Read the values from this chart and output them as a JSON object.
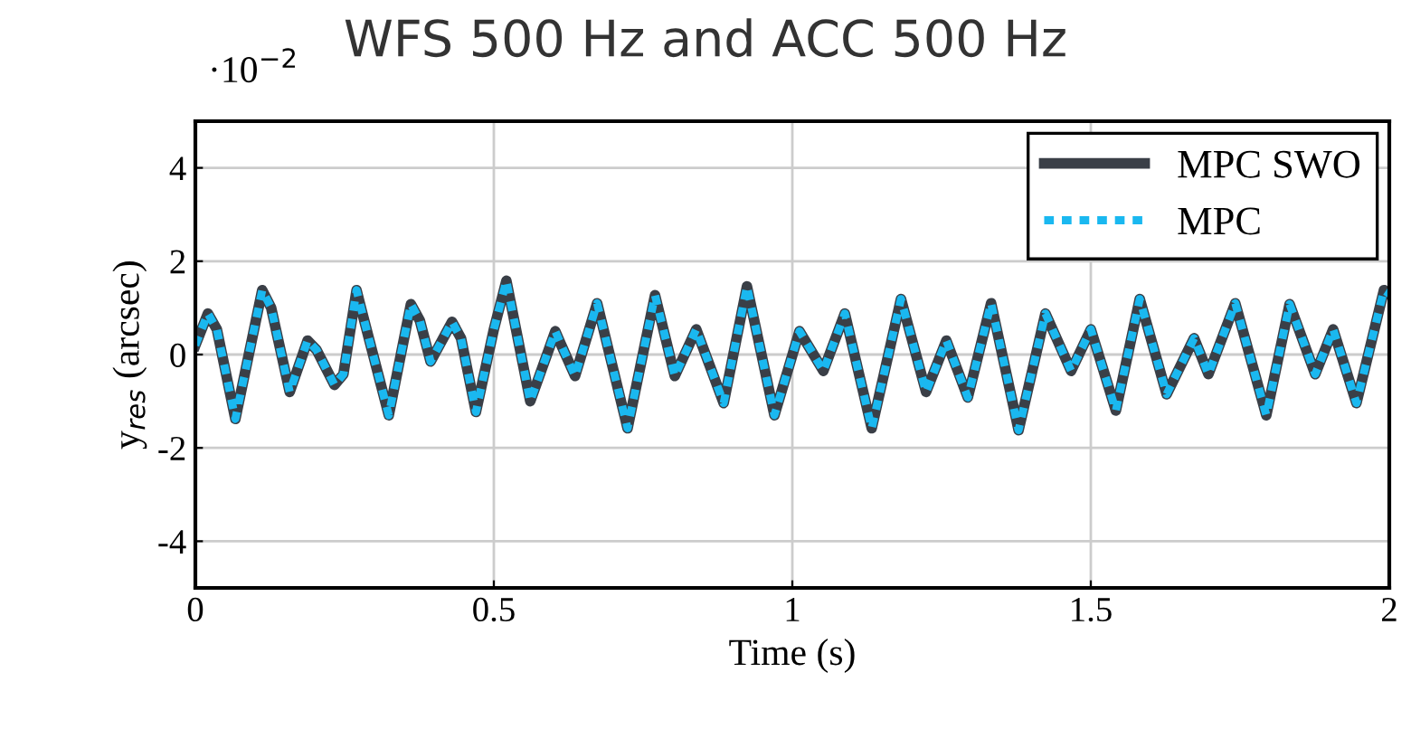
{
  "chart_data": {
    "type": "line",
    "title": "WFS 500 Hz and ACC 500 Hz",
    "xlabel": "Time (s)",
    "ylabel": "y$_{res}$ (arcsec)",
    "annotations": [
      "·10$^{−2}$"
    ],
    "xlim": [
      0,
      2
    ],
    "ylim": [
      -5,
      5
    ],
    "xticks": [
      0,
      0.5,
      1,
      1.5,
      2
    ],
    "yticks": [
      -4,
      -2,
      0,
      2,
      4
    ],
    "grid": true,
    "legend": "top right",
    "x": [
      0,
      0.021,
      0.036,
      0.067,
      0.112,
      0.127,
      0.158,
      0.188,
      0.203,
      0.233,
      0.248,
      0.27,
      0.279,
      0.324,
      0.361,
      0.376,
      0.394,
      0.43,
      0.445,
      0.47,
      0.5,
      0.521,
      0.561,
      0.603,
      0.612,
      0.636,
      0.673,
      0.724,
      0.77,
      0.803,
      0.839,
      0.885,
      0.924,
      0.97,
      1.012,
      1.052,
      1.088,
      1.133,
      1.182,
      1.224,
      1.258,
      1.294,
      1.333,
      1.379,
      1.424,
      1.467,
      1.5,
      1.542,
      1.582,
      1.627,
      1.673,
      1.697,
      1.742,
      1.794,
      1.833,
      1.876,
      1.906,
      1.945,
      1.991,
      2
    ],
    "series": [
      {
        "name": "MPC SWO",
        "color": "#3a3f47",
        "line_style": "solid",
        "values": [
          0.2,
          0.88,
          0.54,
          -1.38,
          1.38,
          1.0,
          -0.8,
          0.3,
          0.1,
          -0.65,
          -0.42,
          1.38,
          0.92,
          -1.3,
          1.08,
          0.73,
          -0.15,
          0.7,
          0.35,
          -1.23,
          0.54,
          1.58,
          -1.0,
          0.5,
          0.23,
          -0.46,
          1.1,
          -1.58,
          1.27,
          -0.46,
          0.54,
          -1.04,
          1.46,
          -1.3,
          0.5,
          -0.35,
          0.88,
          -1.58,
          1.19,
          -0.8,
          0.3,
          -0.92,
          1.1,
          -1.62,
          0.88,
          -0.35,
          0.54,
          -1.2,
          1.19,
          -0.85,
          0.35,
          -0.42,
          1.1,
          -1.3,
          1.08,
          -0.42,
          0.54,
          -1.04,
          1.38,
          1.3
        ]
      },
      {
        "name": "MPC",
        "color": "#1ab8f0",
        "line_style": "dashed",
        "values": [
          0.2,
          0.88,
          0.54,
          -1.38,
          1.38,
          1.0,
          -0.8,
          0.3,
          0.1,
          -0.65,
          -0.42,
          1.38,
          0.92,
          -1.3,
          1.08,
          0.73,
          -0.15,
          0.7,
          0.35,
          -1.23,
          0.54,
          1.58,
          -1.0,
          0.5,
          0.23,
          -0.46,
          1.1,
          -1.58,
          1.27,
          -0.46,
          0.54,
          -1.04,
          1.46,
          -1.3,
          0.5,
          -0.35,
          0.88,
          -1.58,
          1.19,
          -0.8,
          0.3,
          -0.92,
          1.1,
          -1.62,
          0.88,
          -0.35,
          0.54,
          -1.2,
          1.19,
          -0.85,
          0.35,
          -0.42,
          1.1,
          -1.3,
          1.08,
          -0.42,
          0.54,
          -1.04,
          1.38,
          1.3
        ]
      }
    ]
  }
}
